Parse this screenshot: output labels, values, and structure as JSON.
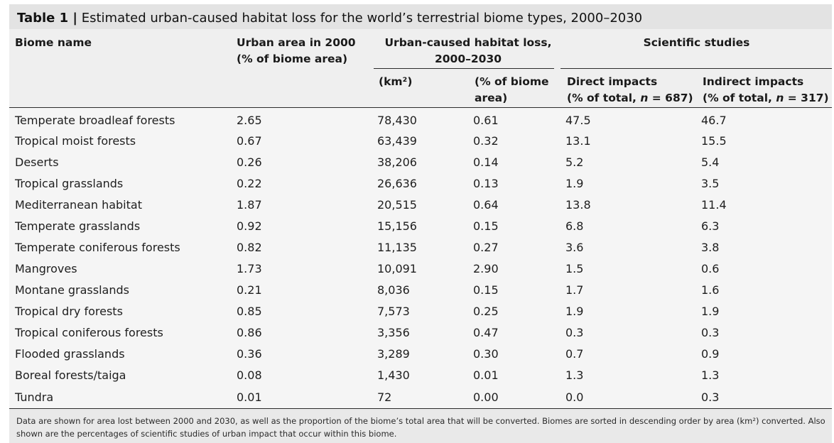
{
  "title": {
    "label": "Table 1 |",
    "text": "Estimated urban-caused habitat loss for the world’s terrestrial biome types, 2000–2030"
  },
  "headers": {
    "biome_name": "Biome name",
    "urban_area_line1": "Urban area in 2000",
    "urban_area_line2": "(% of biome area)",
    "habitat_loss_line1": "Urban-caused habitat loss,",
    "habitat_loss_line2": "2000–2030",
    "km2": "(km²)",
    "pct_line1": "(% of biome",
    "pct_line2": "area)",
    "studies": "Scientific studies",
    "direct_line1": "Direct impacts",
    "direct_line2_prefix": "(% of total, ",
    "direct_n": "n",
    "direct_line2_suffix": " = 687)",
    "indirect_line1": "Indirect impacts",
    "indirect_line2_prefix": "(% of total, ",
    "indirect_n": "n",
    "indirect_line2_suffix": " = 317)"
  },
  "rows": [
    [
      "Temperate broadleaf forests",
      "2.65",
      "78,430",
      "0.61",
      "47.5",
      "46.7"
    ],
    [
      "Tropical moist forests",
      "0.67",
      "63,439",
      "0.32",
      "13.1",
      "15.5"
    ],
    [
      "Deserts",
      "0.26",
      "38,206",
      "0.14",
      "5.2",
      "5.4"
    ],
    [
      "Tropical grasslands",
      "0.22",
      "26,636",
      "0.13",
      "1.9",
      "3.5"
    ],
    [
      "Mediterranean habitat",
      "1.87",
      "20,515",
      "0.64",
      "13.8",
      "11.4"
    ],
    [
      "Temperate grasslands",
      "0.92",
      "15,156",
      "0.15",
      "6.8",
      "6.3"
    ],
    [
      "Temperate coniferous forests",
      "0.82",
      "11,135",
      "0.27",
      "3.6",
      "3.8"
    ],
    [
      "Mangroves",
      "1.73",
      "10,091",
      "2.90",
      "1.5",
      "0.6"
    ],
    [
      "Montane grasslands",
      "0.21",
      "8,036",
      "0.15",
      "1.7",
      "1.6"
    ],
    [
      "Tropical dry forests",
      "0.85",
      "7,573",
      "0.25",
      "1.9",
      "1.9"
    ],
    [
      "Tropical coniferous forests",
      "0.86",
      "3,356",
      "0.47",
      "0.3",
      "0.3"
    ],
    [
      "Flooded grasslands",
      "0.36",
      "3,289",
      "0.30",
      "0.7",
      "0.9"
    ],
    [
      "Boreal forests/taiga",
      "0.08",
      "1,430",
      "0.01",
      "1.3",
      "1.3"
    ],
    [
      "Tundra",
      "0.01",
      "72",
      "0.00",
      "0.0",
      "0.3"
    ]
  ],
  "footnote": "Data are shown for area lost between 2000 and 2030, as well as the proportion of the biome’s total area that will be converted. Biomes are sorted in descending order by area (km²) converted. Also shown are the percentages of scientific studies of urban impact that occur within this biome."
}
